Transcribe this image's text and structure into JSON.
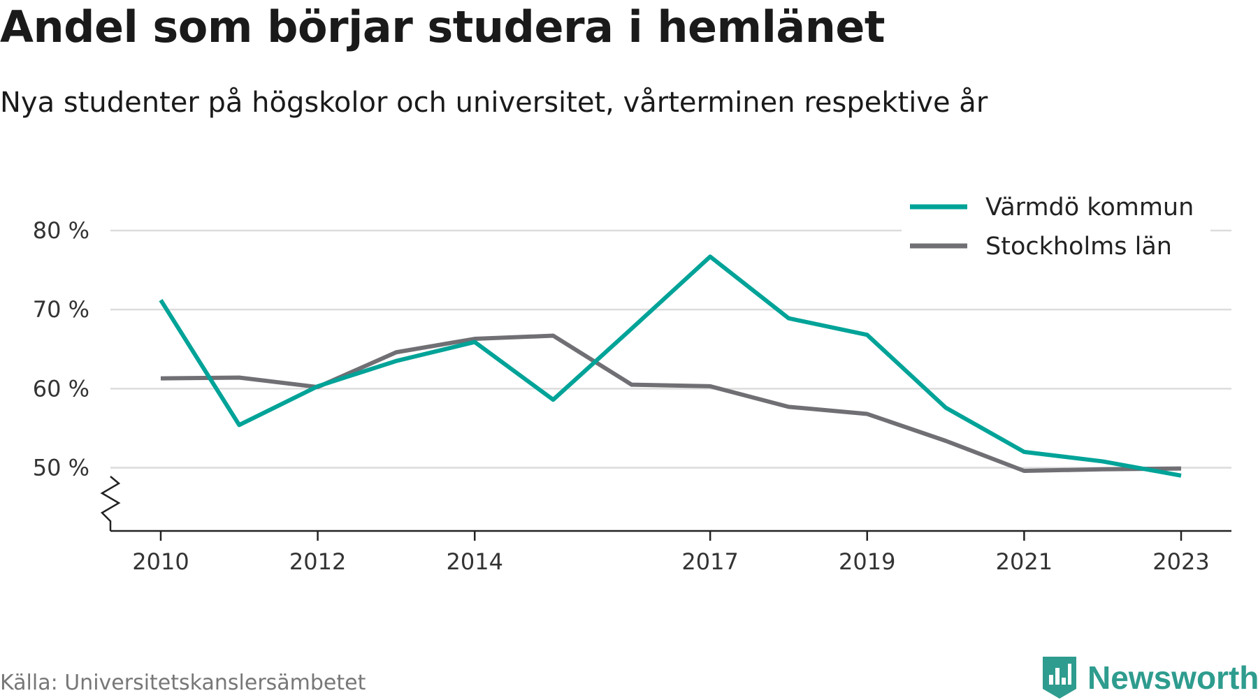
{
  "chart_data": {
    "type": "line",
    "title": "Andel som börjar studera i hemlänet",
    "subtitle": "Nya studenter på högskolor och universitet, vårterminen respektive år",
    "x": [
      2010,
      2011,
      2012,
      2013,
      2014,
      2015,
      2016,
      2017,
      2018,
      2019,
      2020,
      2021,
      2022,
      2023
    ],
    "x_tick_labels": [
      "2010",
      "2012",
      "2014",
      "2017",
      "2019",
      "2021",
      "2023"
    ],
    "y_ticks": [
      50,
      60,
      70,
      80
    ],
    "y_tick_format": "{} %",
    "ylim": [
      42,
      80
    ],
    "y_axis_break": true,
    "grid": "horizontal",
    "legend_position": "top-right",
    "series": [
      {
        "name": "Värmdö kommun",
        "color": "#00a398",
        "values": [
          71.2,
          55.4,
          60.3,
          63.5,
          65.9,
          58.6,
          67.6,
          76.7,
          68.9,
          66.8,
          57.6,
          52.0,
          50.8,
          49.0
        ]
      },
      {
        "name": "Stockholms län",
        "color": "#6f6f74",
        "values": [
          61.3,
          61.4,
          60.2,
          64.6,
          66.3,
          66.7,
          60.5,
          60.3,
          57.7,
          56.8,
          53.4,
          49.6,
          49.8,
          49.9
        ]
      }
    ],
    "source": "Källa: Universitetskanslersämbetet"
  },
  "brand": {
    "name": "Newsworthy",
    "color": "#2e9c8e",
    "icon": "bar-chart-badge-icon"
  }
}
